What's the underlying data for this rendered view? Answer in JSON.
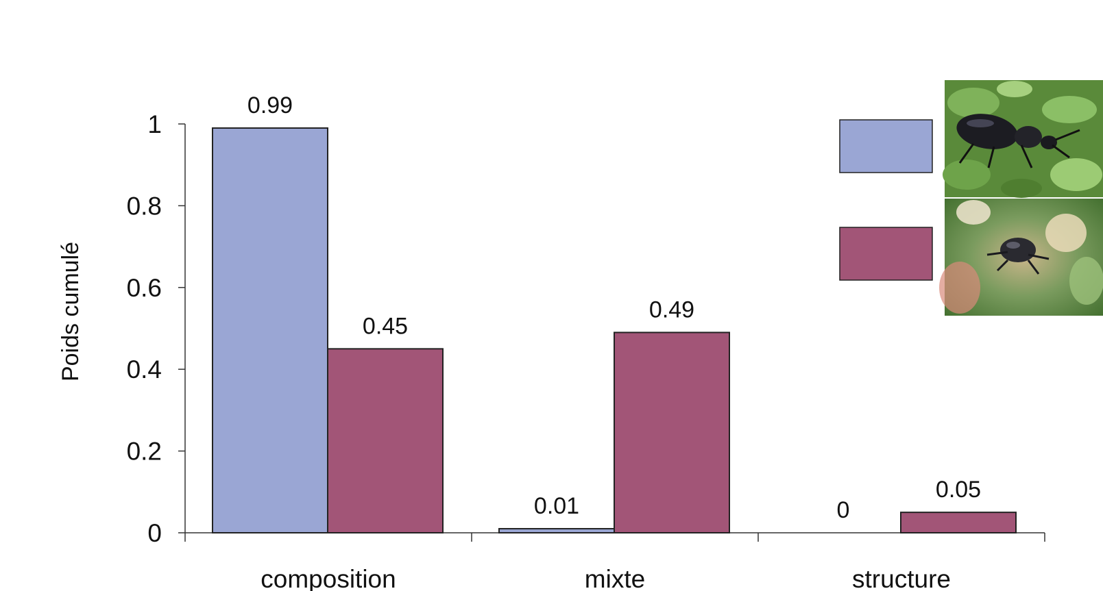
{
  "chart_data": {
    "type": "bar",
    "title": "",
    "xlabel": "",
    "ylabel": "Poids cumulé",
    "ylim": [
      0,
      1
    ],
    "yticks": [
      0,
      0.2,
      0.4,
      0.6,
      0.8,
      1
    ],
    "ytick_labels": [
      "0",
      "0.2",
      "0.4",
      "0.6",
      "0.8",
      "1"
    ],
    "categories": [
      "composition",
      "mixte",
      "structure"
    ],
    "series": [
      {
        "color": "#9aa6d4",
        "values": [
          0.99,
          0.01,
          0
        ],
        "labels": [
          "0.99",
          "0.01",
          "0"
        ]
      },
      {
        "color": "#a25577",
        "values": [
          0.45,
          0.49,
          0.05
        ],
        "labels": [
          "0.45",
          "0.49",
          "0.05"
        ]
      }
    ],
    "legend": {
      "placement": "top-right",
      "entries": [
        {
          "icon": "ground-beetle-photo",
          "color": "#9aa6d4"
        },
        {
          "icon": "flying-dung-beetle-photo",
          "color": "#a25577"
        }
      ]
    },
    "grid": false
  }
}
